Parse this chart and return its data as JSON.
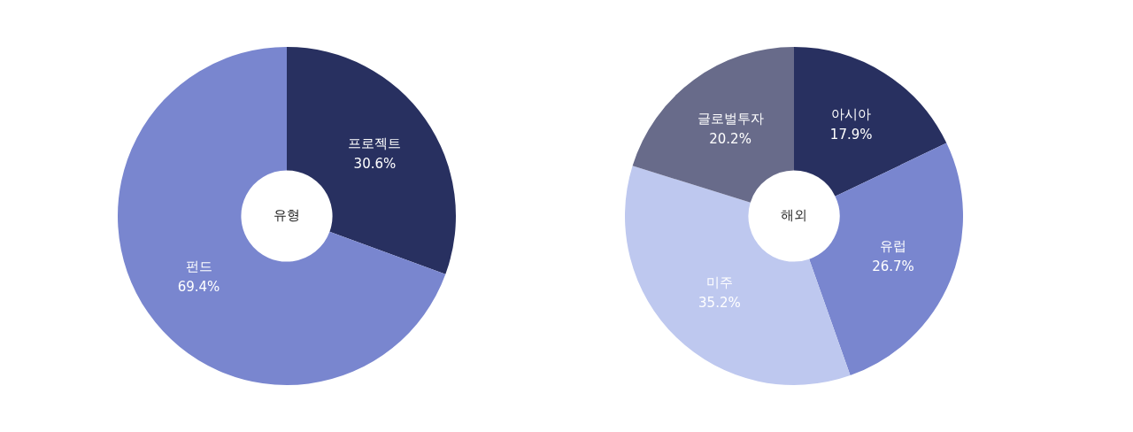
{
  "chart_data": [
    {
      "type": "donut",
      "title": "유형",
      "categories": [
        "프로젝트",
        "펀드"
      ],
      "values": [
        30.6,
        69.4
      ],
      "colors": [
        "#283060",
        "#7986cf"
      ],
      "value_labels": [
        "30.6%",
        "69.4%"
      ],
      "legend": false
    },
    {
      "type": "donut",
      "title": "해외",
      "categories": [
        "아시아",
        "유럽",
        "미주",
        "글로벌투자"
      ],
      "values": [
        17.9,
        26.7,
        35.2,
        20.2
      ],
      "colors": [
        "#283060",
        "#7986cf",
        "#bec8ef",
        "#686b8a"
      ],
      "value_labels": [
        "17.9%",
        "26.7%",
        "35.2%",
        "20.2%"
      ],
      "legend": false
    }
  ]
}
